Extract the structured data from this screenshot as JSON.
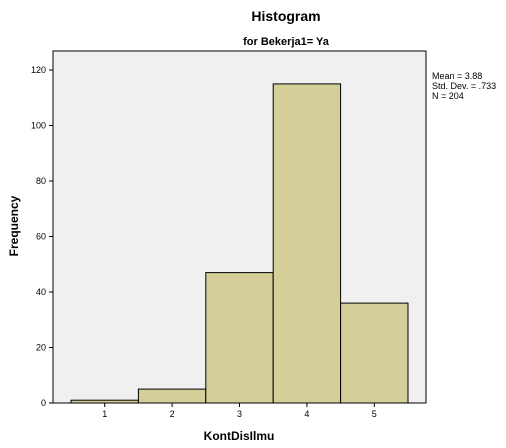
{
  "chart_data": {
    "type": "bar",
    "title": "Histogram",
    "subtitle": "for Bekerja1= Ya",
    "xlabel": "KontDisIlmu",
    "ylabel": "Frequency",
    "categories": [
      "1",
      "2",
      "3",
      "4",
      "5"
    ],
    "values": [
      1,
      5,
      47,
      115,
      36
    ],
    "ylim": [
      0,
      120
    ],
    "yticks": [
      0,
      20,
      40,
      60,
      80,
      100,
      120
    ],
    "grid": false,
    "bar_color": "#d4cf99",
    "bar_edge_color": "#000000",
    "plot_background": "#f0f0f0",
    "stats": {
      "mean": "Mean = 3.88",
      "std": "Std. Dev. = .733",
      "n": "N = 204"
    }
  }
}
